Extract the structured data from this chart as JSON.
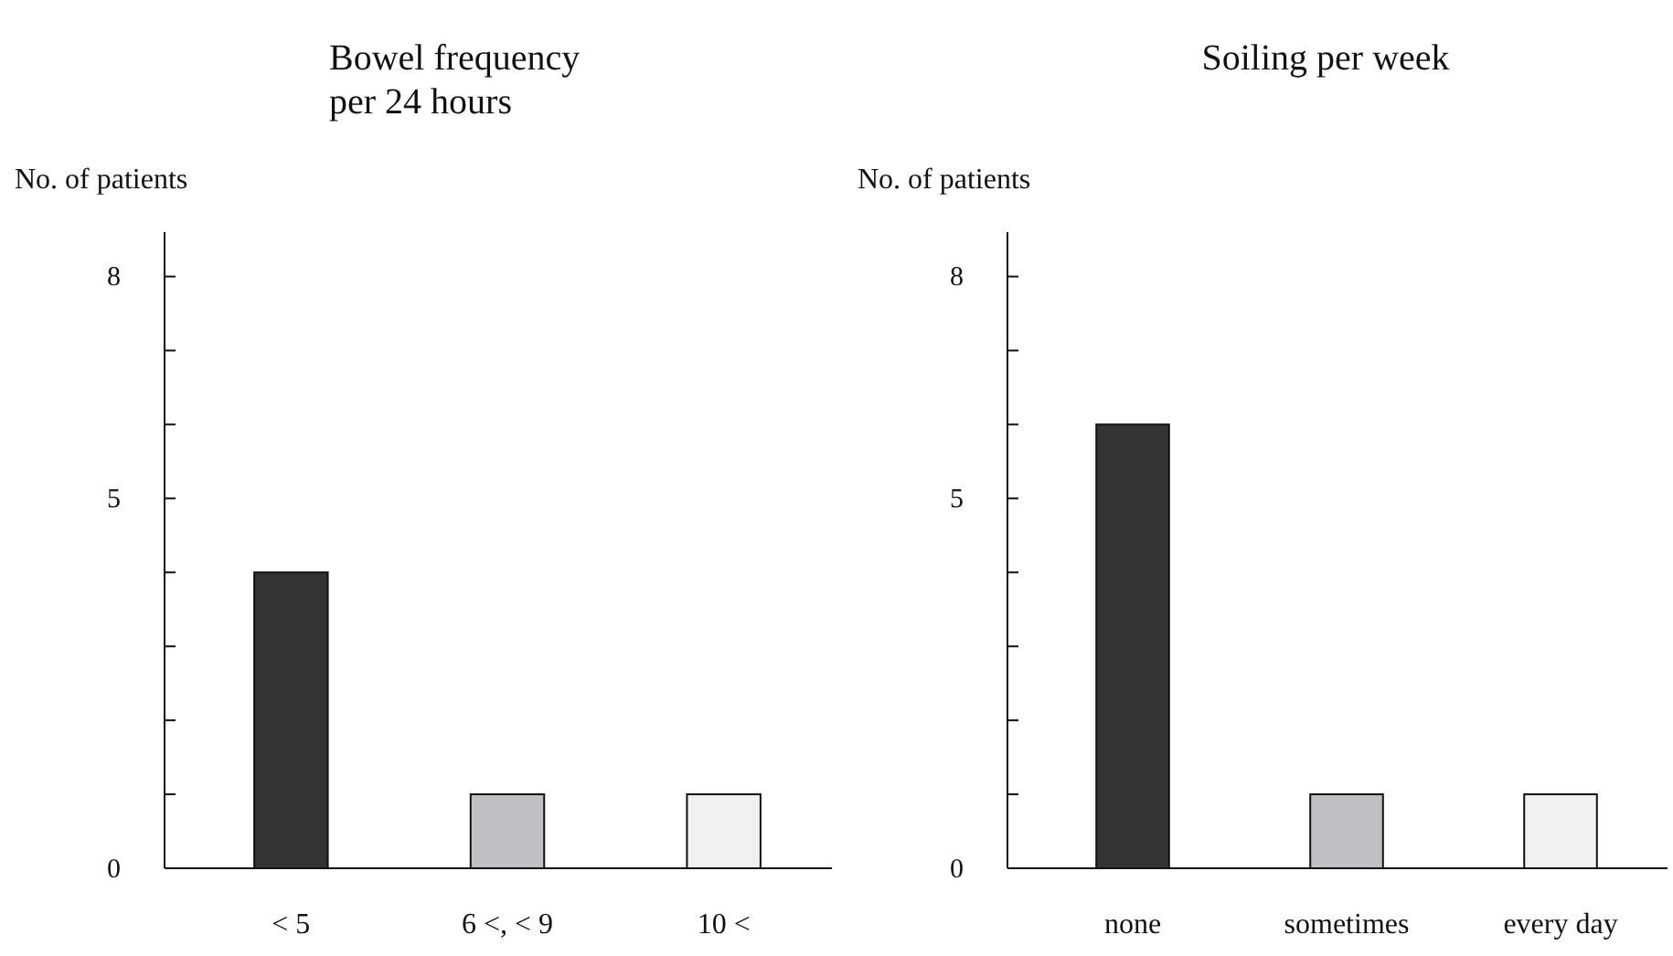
{
  "chart_data": [
    {
      "type": "bar",
      "title": "Bowel frequency\nper 24 hours",
      "ylabel": "No. of patients",
      "categories": [
        "< 5",
        "6 <, < 9",
        "10 <"
      ],
      "values": [
        4,
        1,
        1
      ],
      "colors": [
        "#333333",
        "#c0c0c4",
        "#f0f0f0"
      ],
      "ylim": [
        0,
        8.6
      ],
      "yticks": [
        0,
        {
          "value": 1,
          "label": null
        },
        {
          "value": 2,
          "label": null
        },
        {
          "value": 3,
          "label": null
        },
        {
          "value": 4,
          "label": null
        },
        5,
        {
          "value": 6,
          "label": null
        },
        {
          "value": 7,
          "label": null
        },
        8
      ],
      "grid": false
    },
    {
      "type": "bar",
      "title": "Soiling per week",
      "ylabel": "No. of patients",
      "categories": [
        "none",
        "sometimes",
        "every day"
      ],
      "values": [
        6,
        1,
        1
      ],
      "colors": [
        "#333333",
        "#c0c0c4",
        "#f0f0f0"
      ],
      "ylim": [
        0,
        8.6
      ],
      "yticks": [
        0,
        {
          "value": 1,
          "label": null
        },
        {
          "value": 2,
          "label": null
        },
        {
          "value": 3,
          "label": null
        },
        {
          "value": 4,
          "label": null
        },
        5,
        {
          "value": 6,
          "label": null
        },
        {
          "value": 7,
          "label": null
        },
        8
      ],
      "grid": false
    }
  ]
}
